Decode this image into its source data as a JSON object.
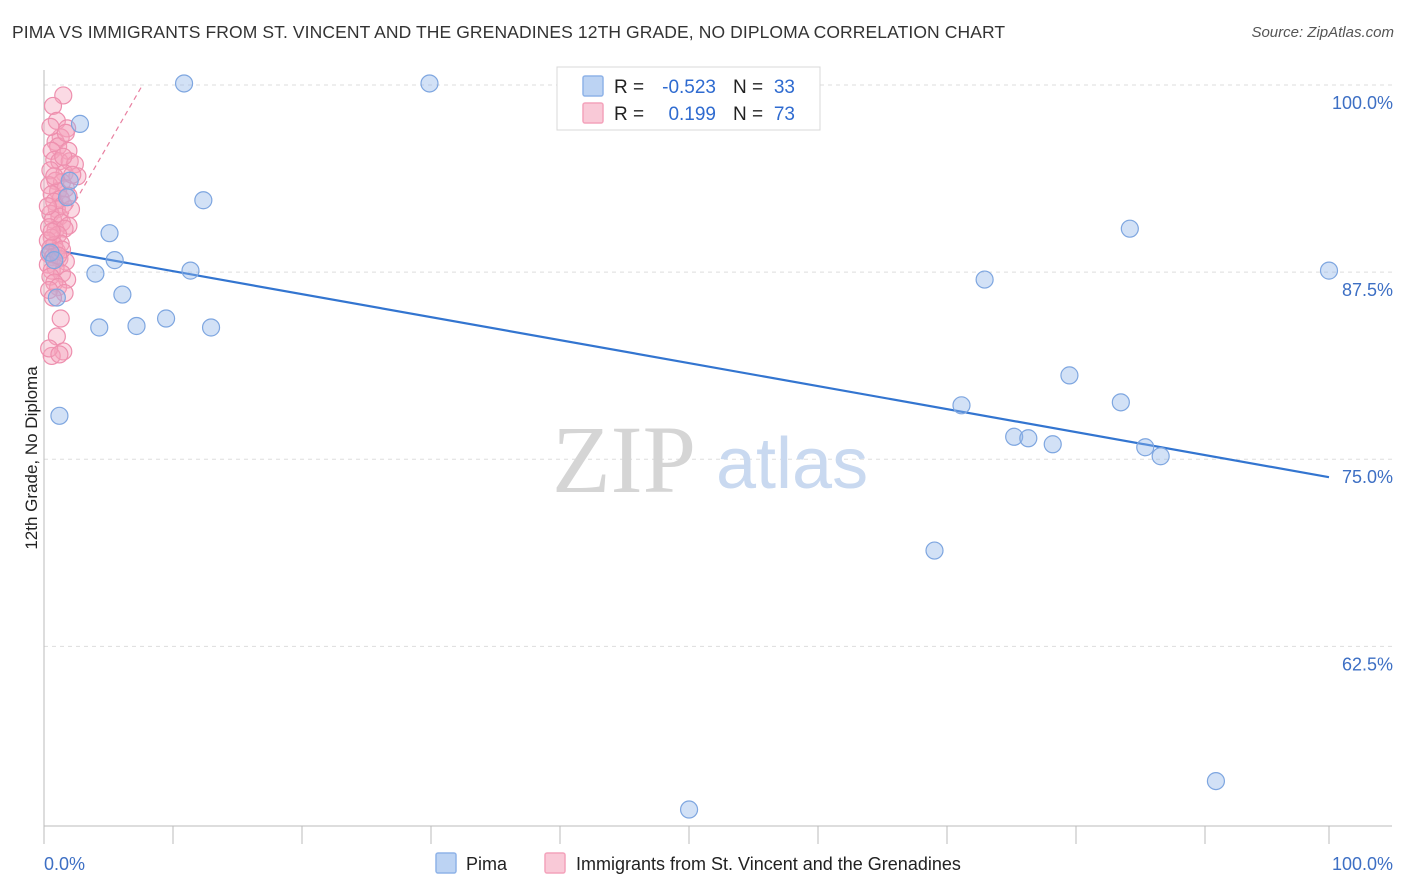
{
  "header": {
    "title": "PIMA VS IMMIGRANTS FROM ST. VINCENT AND THE GRENADINES 12TH GRADE, NO DIPLOMA CORRELATION CHART",
    "source": "Source: ZipAtlas.com"
  },
  "watermark": {
    "zip": "ZIP",
    "atlas": "atlas"
  },
  "colors": {
    "pima": "#8fb3e8",
    "pima_line": "#3375d0",
    "immigrants": "#f4a3bc",
    "immigrants_line": "#e87fa0",
    "axis_text": "#3d6fc4",
    "grid": "#dddddd"
  },
  "stats": [
    {
      "r_label": "R =",
      "r_value": "-0.523",
      "n_label": "N =",
      "n_value": "33"
    },
    {
      "r_label": "R =",
      "r_value": "0.199",
      "n_label": "N =",
      "n_value": "73"
    }
  ],
  "chart_data": {
    "type": "scatter",
    "xlabel": "",
    "ylabel": "12th Grade, No Diploma",
    "xlim": [
      0,
      100
    ],
    "ylim": [
      50.5,
      101
    ],
    "x_tick_labels": [
      "0.0%",
      "100.0%"
    ],
    "y_ticks": [
      {
        "value": 100,
        "label": "100.0%"
      },
      {
        "value": 87.5,
        "label": "87.5%"
      },
      {
        "value": 75,
        "label": "75.0%"
      },
      {
        "value": 62.5,
        "label": "62.5%"
      }
    ],
    "grid": true,
    "legend_position": "bottom",
    "series": [
      {
        "name": "Pima",
        "points": [
          [
            0.5,
            88.8
          ],
          [
            0.8,
            88.3
          ],
          [
            1.0,
            85.8
          ],
          [
            1.2,
            77.9
          ],
          [
            2.0,
            93.6
          ],
          [
            1.8,
            92.5
          ],
          [
            2.8,
            97.4
          ],
          [
            4.0,
            87.4
          ],
          [
            4.3,
            83.8
          ],
          [
            5.1,
            90.1
          ],
          [
            5.5,
            88.3
          ],
          [
            6.1,
            86.0
          ],
          [
            7.2,
            83.9
          ],
          [
            9.5,
            84.4
          ],
          [
            10.9,
            100.1
          ],
          [
            11.4,
            87.6
          ],
          [
            12.4,
            92.3
          ],
          [
            13.0,
            83.8
          ],
          [
            30.0,
            100.1
          ],
          [
            50.2,
            51.6
          ],
          [
            69.3,
            68.9
          ],
          [
            71.4,
            78.6
          ],
          [
            73.2,
            87.0
          ],
          [
            75.5,
            76.5
          ],
          [
            76.6,
            76.4
          ],
          [
            78.5,
            76.0
          ],
          [
            79.8,
            80.6
          ],
          [
            83.8,
            78.8
          ],
          [
            84.5,
            90.4
          ],
          [
            85.7,
            75.8
          ],
          [
            86.9,
            75.2
          ],
          [
            91.2,
            53.5
          ],
          [
            100.0,
            87.6
          ]
        ],
        "trend": {
          "x": [
            0,
            100
          ],
          "y": [
            89.1,
            73.8
          ]
        }
      },
      {
        "name": "Immigrants from St. Vincent and the Grenadines",
        "points": [
          [
            1.5,
            99.3
          ],
          [
            0.7,
            98.6
          ],
          [
            1.0,
            97.6
          ],
          [
            1.8,
            97.1
          ],
          [
            1.3,
            96.5
          ],
          [
            0.9,
            96.2
          ],
          [
            1.1,
            95.9
          ],
          [
            0.6,
            95.6
          ],
          [
            1.9,
            95.6
          ],
          [
            0.8,
            95.0
          ],
          [
            1.2,
            94.9
          ],
          [
            2.0,
            94.9
          ],
          [
            2.4,
            94.7
          ],
          [
            0.5,
            94.3
          ],
          [
            1.6,
            94.1
          ],
          [
            2.6,
            93.9
          ],
          [
            0.9,
            93.6
          ],
          [
            1.4,
            93.5
          ],
          [
            0.4,
            93.3
          ],
          [
            1.7,
            93.1
          ],
          [
            1.1,
            92.9
          ],
          [
            0.6,
            92.7
          ],
          [
            1.3,
            92.4
          ],
          [
            0.8,
            92.2
          ],
          [
            1.5,
            92.0
          ],
          [
            1.0,
            91.7
          ],
          [
            0.5,
            91.4
          ],
          [
            1.2,
            91.2
          ],
          [
            0.7,
            91.0
          ],
          [
            1.4,
            90.8
          ],
          [
            1.9,
            90.6
          ],
          [
            0.4,
            90.5
          ],
          [
            0.9,
            90.3
          ],
          [
            1.6,
            90.4
          ],
          [
            1.1,
            90.0
          ],
          [
            0.6,
            89.8
          ],
          [
            0.3,
            89.6
          ],
          [
            1.3,
            89.4
          ],
          [
            0.8,
            89.3
          ],
          [
            0.5,
            89.1
          ],
          [
            1.0,
            88.9
          ],
          [
            0.4,
            88.7
          ],
          [
            0.7,
            88.5
          ],
          [
            1.2,
            88.4
          ],
          [
            1.7,
            88.2
          ],
          [
            0.3,
            88.0
          ],
          [
            0.9,
            87.8
          ],
          [
            0.6,
            87.6
          ],
          [
            1.4,
            87.4
          ],
          [
            0.5,
            87.2
          ],
          [
            1.8,
            87.0
          ],
          [
            0.8,
            86.8
          ],
          [
            1.1,
            86.5
          ],
          [
            0.4,
            86.3
          ],
          [
            1.6,
            86.1
          ],
          [
            0.7,
            85.8
          ],
          [
            1.3,
            84.4
          ],
          [
            1.0,
            83.2
          ],
          [
            1.5,
            82.2
          ],
          [
            0.6,
            81.9
          ],
          [
            0.4,
            82.4
          ],
          [
            1.2,
            82.0
          ],
          [
            2.2,
            94.0
          ],
          [
            0.5,
            97.2
          ],
          [
            1.7,
            96.8
          ],
          [
            2.1,
            91.7
          ],
          [
            0.8,
            93.9
          ],
          [
            1.4,
            89.0
          ],
          [
            0.6,
            90.2
          ],
          [
            1.9,
            92.6
          ],
          [
            1.1,
            88.6
          ],
          [
            0.3,
            91.9
          ],
          [
            1.5,
            95.2
          ]
        ],
        "trend": {
          "x": [
            0,
            7.6
          ],
          "y": [
            88.6,
            99.9
          ]
        }
      }
    ]
  }
}
